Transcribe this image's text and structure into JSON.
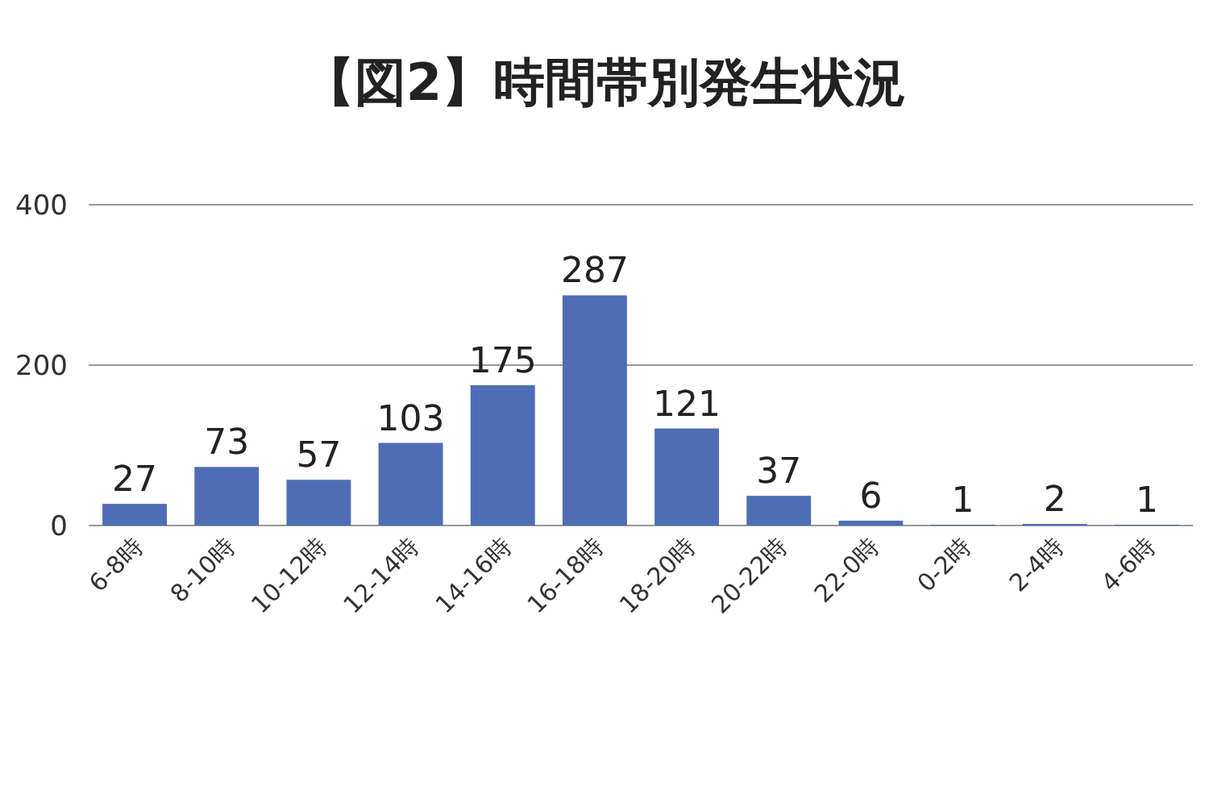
{
  "chart_data": {
    "type": "bar",
    "title": "【図2】時間帯別発生状況",
    "categories": [
      "6-8時",
      "8-10時",
      "10-12時",
      "12-14時",
      "14-16時",
      "16-18時",
      "18-20時",
      "20-22時",
      "22-0時",
      "0-2時",
      "2-4時",
      "4-6時"
    ],
    "values": [
      27,
      73,
      57,
      103,
      175,
      287,
      121,
      37,
      6,
      1,
      2,
      1
    ],
    "color": "#4f6db4",
    "ylim": [
      0,
      400
    ],
    "yticks": [
      0,
      200,
      400
    ],
    "grid": "y",
    "data_labels": true
  }
}
